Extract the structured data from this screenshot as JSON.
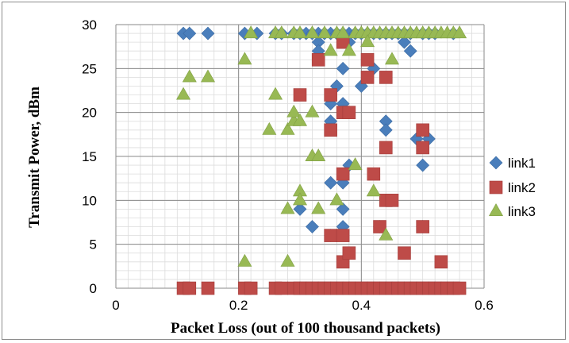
{
  "chart_data": {
    "type": "scatter",
    "xlabel": "Packet Loss (out of 100 thousand packets)",
    "ylabel": "Transmit Power, dBm",
    "xlim": [
      0,
      0.6
    ],
    "ylim": [
      0,
      30
    ],
    "x_ticks": [
      0,
      0.2,
      0.4,
      0.6
    ],
    "x_tick_labels": [
      "0",
      "0.2",
      "0.4",
      "0.6"
    ],
    "y_ticks": [
      0,
      5,
      10,
      15,
      20,
      25,
      30
    ],
    "y_tick_labels": [
      "0",
      "5",
      "10",
      "15",
      "20",
      "25",
      "30"
    ],
    "grid": true,
    "legend_position": "right",
    "series": [
      {
        "name": "link1",
        "marker": "diamond",
        "color": "#4a7ebb",
        "points": [
          [
            0.11,
            29
          ],
          [
            0.12,
            29
          ],
          [
            0.15,
            29
          ],
          [
            0.21,
            29
          ],
          [
            0.23,
            29
          ],
          [
            0.26,
            29
          ],
          [
            0.27,
            29
          ],
          [
            0.29,
            29
          ],
          [
            0.3,
            29
          ],
          [
            0.31,
            29
          ],
          [
            0.32,
            29
          ],
          [
            0.33,
            29
          ],
          [
            0.34,
            29
          ],
          [
            0.35,
            29
          ],
          [
            0.36,
            29
          ],
          [
            0.37,
            29
          ],
          [
            0.38,
            29
          ],
          [
            0.39,
            29
          ],
          [
            0.4,
            29
          ],
          [
            0.41,
            29
          ],
          [
            0.42,
            29
          ],
          [
            0.43,
            29
          ],
          [
            0.44,
            29
          ],
          [
            0.45,
            29
          ],
          [
            0.46,
            29
          ],
          [
            0.47,
            29
          ],
          [
            0.48,
            29
          ],
          [
            0.5,
            29
          ],
          [
            0.51,
            29
          ],
          [
            0.52,
            29
          ],
          [
            0.55,
            29
          ],
          [
            0.33,
            28
          ],
          [
            0.38,
            28
          ],
          [
            0.47,
            28
          ],
          [
            0.48,
            27
          ],
          [
            0.33,
            27
          ],
          [
            0.37,
            25
          ],
          [
            0.42,
            25
          ],
          [
            0.4,
            23
          ],
          [
            0.36,
            23
          ],
          [
            0.35,
            21
          ],
          [
            0.37,
            21
          ],
          [
            0.35,
            19
          ],
          [
            0.44,
            19
          ],
          [
            0.44,
            18
          ],
          [
            0.49,
            17
          ],
          [
            0.51,
            17
          ],
          [
            0.37,
            13
          ],
          [
            0.38,
            14
          ],
          [
            0.5,
            14
          ],
          [
            0.35,
            12
          ],
          [
            0.37,
            12
          ],
          [
            0.3,
            9
          ],
          [
            0.37,
            9
          ],
          [
            0.37,
            7
          ],
          [
            0.32,
            7
          ],
          [
            0.43,
            7
          ],
          [
            0.5,
            7
          ],
          [
            0.35,
            6
          ],
          [
            0.38,
            0
          ]
        ]
      },
      {
        "name": "link2",
        "marker": "square",
        "color": "#be4b48",
        "points": [
          [
            0.11,
            0
          ],
          [
            0.12,
            0
          ],
          [
            0.15,
            0
          ],
          [
            0.21,
            0
          ],
          [
            0.22,
            0
          ],
          [
            0.26,
            0
          ],
          [
            0.27,
            0
          ],
          [
            0.29,
            0
          ],
          [
            0.3,
            0
          ],
          [
            0.31,
            0
          ],
          [
            0.32,
            0
          ],
          [
            0.33,
            0
          ],
          [
            0.34,
            0
          ],
          [
            0.35,
            0
          ],
          [
            0.36,
            0
          ],
          [
            0.37,
            0
          ],
          [
            0.38,
            0
          ],
          [
            0.39,
            0
          ],
          [
            0.4,
            0
          ],
          [
            0.41,
            0
          ],
          [
            0.42,
            0
          ],
          [
            0.43,
            0
          ],
          [
            0.44,
            0
          ],
          [
            0.45,
            0
          ],
          [
            0.46,
            0
          ],
          [
            0.47,
            0
          ],
          [
            0.48,
            0
          ],
          [
            0.49,
            0
          ],
          [
            0.5,
            0
          ],
          [
            0.51,
            0
          ],
          [
            0.52,
            0
          ],
          [
            0.53,
            0
          ],
          [
            0.54,
            0
          ],
          [
            0.55,
            0
          ],
          [
            0.56,
            0
          ],
          [
            0.33,
            26
          ],
          [
            0.41,
            26
          ],
          [
            0.37,
            28
          ],
          [
            0.41,
            24
          ],
          [
            0.44,
            24
          ],
          [
            0.3,
            22
          ],
          [
            0.35,
            22
          ],
          [
            0.37,
            20
          ],
          [
            0.38,
            20
          ],
          [
            0.35,
            18
          ],
          [
            0.5,
            18
          ],
          [
            0.5,
            16
          ],
          [
            0.44,
            16
          ],
          [
            0.37,
            13
          ],
          [
            0.42,
            13
          ],
          [
            0.44,
            10
          ],
          [
            0.45,
            10
          ],
          [
            0.35,
            6
          ],
          [
            0.37,
            6
          ],
          [
            0.43,
            7
          ],
          [
            0.5,
            7
          ],
          [
            0.37,
            3
          ],
          [
            0.38,
            4
          ],
          [
            0.47,
            4
          ],
          [
            0.53,
            3
          ]
        ]
      },
      {
        "name": "link3",
        "marker": "triangle",
        "color": "#98b954",
        "points": [
          [
            0.11,
            22
          ],
          [
            0.12,
            24
          ],
          [
            0.15,
            24
          ],
          [
            0.21,
            26
          ],
          [
            0.22,
            29
          ],
          [
            0.26,
            29
          ],
          [
            0.27,
            29
          ],
          [
            0.29,
            29
          ],
          [
            0.3,
            29
          ],
          [
            0.32,
            29
          ],
          [
            0.34,
            29
          ],
          [
            0.36,
            29
          ],
          [
            0.37,
            29
          ],
          [
            0.39,
            29
          ],
          [
            0.4,
            29
          ],
          [
            0.41,
            29
          ],
          [
            0.42,
            29
          ],
          [
            0.43,
            29
          ],
          [
            0.44,
            29
          ],
          [
            0.45,
            29
          ],
          [
            0.46,
            29
          ],
          [
            0.47,
            29
          ],
          [
            0.48,
            29
          ],
          [
            0.49,
            29
          ],
          [
            0.5,
            29
          ],
          [
            0.51,
            29
          ],
          [
            0.52,
            29
          ],
          [
            0.53,
            29
          ],
          [
            0.54,
            29
          ],
          [
            0.55,
            29
          ],
          [
            0.56,
            29
          ],
          [
            0.41,
            28
          ],
          [
            0.35,
            27
          ],
          [
            0.38,
            27
          ],
          [
            0.45,
            26
          ],
          [
            0.26,
            22
          ],
          [
            0.25,
            18
          ],
          [
            0.28,
            18
          ],
          [
            0.29,
            19
          ],
          [
            0.29,
            20
          ],
          [
            0.3,
            19
          ],
          [
            0.32,
            20
          ],
          [
            0.32,
            15
          ],
          [
            0.33,
            15
          ],
          [
            0.39,
            14
          ],
          [
            0.3,
            11
          ],
          [
            0.3,
            10
          ],
          [
            0.33,
            9
          ],
          [
            0.28,
            9
          ],
          [
            0.36,
            10
          ],
          [
            0.42,
            11
          ],
          [
            0.44,
            6
          ],
          [
            0.21,
            3
          ],
          [
            0.28,
            3
          ]
        ]
      }
    ]
  }
}
